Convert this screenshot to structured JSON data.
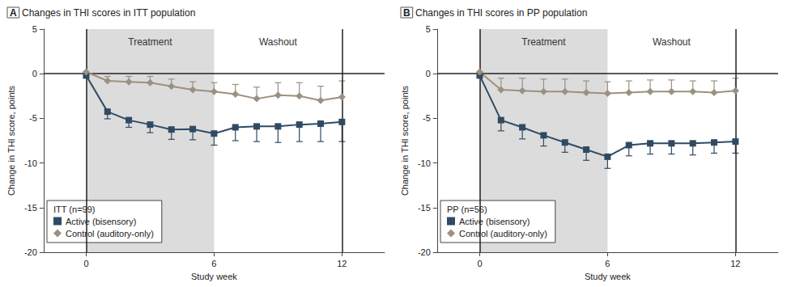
{
  "chart_data": [
    {
      "type": "line",
      "panel": "A",
      "title": "Changes in THI scores in ITT population",
      "x_label": "Study week",
      "y_label": "Change in THI score, points",
      "x": [
        0,
        1,
        2,
        3,
        4,
        5,
        6,
        7,
        8,
        9,
        10,
        11,
        12
      ],
      "xlim": [
        -2,
        14
      ],
      "xticks": [
        0,
        6,
        12
      ],
      "ylim": [
        -20,
        5
      ],
      "yticks": [
        -20,
        -15,
        -10,
        -5,
        0,
        5
      ],
      "grid": false,
      "legend": "lower left",
      "legend_title": "ITT (n=99)",
      "vlines": [
        0,
        12
      ],
      "hlines": [
        0
      ],
      "annotations": [
        {
          "text": "Treatment",
          "x_range": [
            0,
            6
          ],
          "shaded": true
        },
        {
          "text": "Washout",
          "x_range": [
            6,
            12
          ],
          "shaded": false
        }
      ],
      "series": [
        {
          "name": "Active (bisensory)",
          "color": "#2f4a63",
          "marker": "square",
          "error_direction": "down",
          "values": [
            -0.2,
            -4.25,
            -5.2,
            -5.7,
            -6.25,
            -6.2,
            -6.7,
            -6.0,
            -5.9,
            -5.9,
            -5.7,
            -5.6,
            -5.4
          ],
          "errors": [
            null,
            0.8,
            0.8,
            0.9,
            1.1,
            1.2,
            1.3,
            1.5,
            1.7,
            1.8,
            1.9,
            2.0,
            2.2
          ]
        },
        {
          "name": "Control (auditory-only)",
          "color": "#9c9080",
          "marker": "diamond",
          "error_direction": "up",
          "values": [
            0.2,
            -0.8,
            -0.9,
            -1.0,
            -1.4,
            -1.8,
            -2.0,
            -2.3,
            -2.8,
            -2.4,
            -2.5,
            -3.0,
            -2.6
          ],
          "errors": [
            null,
            0.5,
            0.6,
            0.7,
            0.8,
            0.9,
            1.0,
            1.1,
            1.3,
            1.4,
            1.5,
            1.6,
            1.8
          ]
        }
      ]
    },
    {
      "type": "line",
      "panel": "B",
      "title": "Changes in THI scores in PP population",
      "x_label": "Study week",
      "y_label": "Change in THI score, points",
      "x": [
        0,
        1,
        2,
        3,
        4,
        5,
        6,
        7,
        8,
        9,
        10,
        11,
        12
      ],
      "xlim": [
        -2,
        14
      ],
      "xticks": [
        0,
        6,
        12
      ],
      "ylim": [
        -20,
        5
      ],
      "yticks": [
        -20,
        -15,
        -10,
        -5,
        0,
        5
      ],
      "grid": false,
      "legend": "lower left",
      "legend_title": "PP (n=56)",
      "vlines": [
        0,
        12
      ],
      "hlines": [
        0
      ],
      "annotations": [
        {
          "text": "Treatment",
          "x_range": [
            0,
            6
          ],
          "shaded": true
        },
        {
          "text": "Washout",
          "x_range": [
            6,
            12
          ],
          "shaded": false
        }
      ],
      "series": [
        {
          "name": "Active (bisensory)",
          "color": "#2f4a63",
          "marker": "square",
          "error_direction": "down",
          "values": [
            -0.2,
            -5.2,
            -6.0,
            -6.9,
            -7.7,
            -8.5,
            -9.3,
            -8.0,
            -7.8,
            -7.8,
            -7.8,
            -7.7,
            -7.6
          ],
          "errors": [
            null,
            1.2,
            1.3,
            1.2,
            1.1,
            1.2,
            1.3,
            1.2,
            1.2,
            1.2,
            1.3,
            1.2,
            1.3
          ]
        },
        {
          "name": "Control (auditory-only)",
          "color": "#9c9080",
          "marker": "diamond",
          "error_direction": "up",
          "values": [
            0.2,
            -1.8,
            -1.9,
            -2.0,
            -2.0,
            -2.1,
            -2.2,
            -2.1,
            -2.0,
            -2.0,
            -2.0,
            -2.1,
            -1.9
          ],
          "errors": [
            null,
            1.3,
            1.4,
            1.4,
            1.4,
            1.3,
            1.3,
            1.3,
            1.3,
            1.3,
            1.2,
            1.3,
            1.4
          ]
        }
      ]
    }
  ]
}
